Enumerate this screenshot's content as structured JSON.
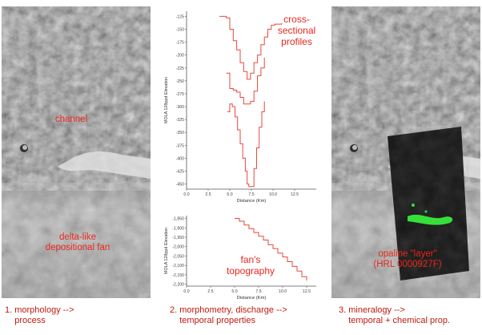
{
  "panels": {
    "left": {
      "labels": {
        "channel": "channel",
        "fan": "delta-like\ndepositional fan"
      },
      "caption": "1. morphology -->\n    process"
    },
    "middle": {
      "caption": "2. morphometry, discharge -->\n    temporal properties"
    },
    "right": {
      "labels": {
        "opaline": "opaline \"layer\"\n(HRL 0000927F)"
      },
      "caption": "3. mineralogy -->\n    temporal + chemical prop."
    }
  },
  "colors": {
    "annotation": "#e8261c",
    "caption": "#c01a10",
    "profile": "#e64a3c",
    "axis": "#555555"
  },
  "chart_data": [
    {
      "type": "line",
      "title": "cross-\nsectional\nprofiles",
      "xlabel": "Distance (Km)",
      "ylabel": "MOLA 128ppd Elevation",
      "xlim": [
        0,
        15
      ],
      "ylim": [
        -460,
        -115
      ],
      "xticks": [
        "0.0",
        "2.5",
        "5.0",
        "7.5",
        "10.0",
        "12.5"
      ],
      "yticks": [
        "-125",
        "-150",
        "-175",
        "-200",
        "-225",
        "-250",
        "-275",
        "-300",
        "-325",
        "-350",
        "-375",
        "-400",
        "-425",
        "-450"
      ],
      "series": [
        {
          "x": [
            3.8,
            4.6,
            5.0,
            5.4,
            5.8,
            6.2,
            6.6,
            7.0,
            7.4,
            7.8,
            8.2,
            8.6,
            9.0,
            9.4,
            9.8,
            10.2,
            11.0
          ],
          "y": [
            -125,
            -128,
            -150,
            -172,
            -190,
            -215,
            -232,
            -247,
            -235,
            -215,
            -200,
            -180,
            -165,
            -150,
            -142,
            -140,
            -138
          ]
        },
        {
          "x": [
            4.6,
            5.0,
            5.4,
            5.8,
            6.2,
            6.6,
            7.0,
            7.4,
            7.8,
            8.2,
            8.6,
            9.0
          ],
          "y": [
            -235,
            -265,
            -268,
            -272,
            -282,
            -295,
            -295,
            -290,
            -270,
            -240,
            -225,
            -205
          ]
        },
        {
          "x": [
            4.7,
            5.0,
            5.3,
            5.6,
            5.9,
            6.2,
            6.5,
            6.8,
            7.0,
            7.2,
            7.5,
            7.8,
            8.1,
            8.4,
            8.7,
            9.0
          ],
          "y": [
            -310,
            -295,
            -300,
            -320,
            -345,
            -372,
            -400,
            -425,
            -450,
            -455,
            -455,
            -420,
            -380,
            -340,
            -310,
            -290
          ]
        }
      ]
    },
    {
      "type": "line",
      "title": "fan's\ntopography",
      "xlabel": "Distance (Km)",
      "ylabel": "MOLA 128ppd Elevation",
      "xlim": [
        0,
        13.5
      ],
      "ylim": [
        -2210,
        -1835
      ],
      "xticks": [
        "0.0",
        "2.5",
        "5.0",
        "7.5",
        "10.0",
        "12.5"
      ],
      "yticks": [
        "-1,850",
        "-1,900",
        "-1,950",
        "-2,000",
        "-2,050",
        "-2,100",
        "-2,150",
        "-2,200"
      ],
      "series": [
        {
          "x": [
            5.0,
            5.5,
            6.0,
            6.5,
            7.0,
            7.5,
            8.0,
            8.5,
            9.0,
            9.5,
            10.0,
            10.5,
            11.0,
            11.5,
            12.0,
            12.5
          ],
          "y": [
            -1850,
            -1865,
            -1885,
            -1905,
            -1925,
            -1945,
            -1965,
            -1990,
            -2010,
            -2035,
            -2055,
            -2080,
            -2105,
            -2130,
            -2160,
            -2180
          ]
        }
      ]
    }
  ]
}
